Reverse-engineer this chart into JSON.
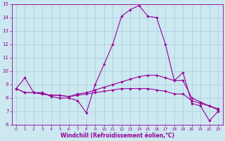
{
  "x": [
    0,
    1,
    2,
    3,
    4,
    5,
    6,
    7,
    8,
    9,
    10,
    11,
    12,
    13,
    14,
    15,
    16,
    17,
    18,
    19,
    20,
    21,
    22,
    23
  ],
  "line_main": [
    8.7,
    9.5,
    8.4,
    8.4,
    8.1,
    8.0,
    8.0,
    7.8,
    6.9,
    9.0,
    10.5,
    12.0,
    14.1,
    14.6,
    14.9,
    14.1,
    14.0,
    12.0,
    9.3,
    9.9,
    7.6,
    7.4,
    6.3,
    7.0
  ],
  "line_flat1": [
    8.7,
    8.4,
    8.4,
    8.3,
    8.2,
    8.2,
    8.1,
    8.3,
    8.4,
    8.6,
    8.8,
    9.0,
    9.2,
    9.4,
    9.6,
    9.7,
    9.7,
    9.5,
    9.3,
    9.3,
    8.0,
    7.7,
    7.4,
    7.2
  ],
  "line_flat2": [
    8.7,
    8.4,
    8.4,
    8.3,
    8.2,
    8.2,
    8.1,
    8.2,
    8.3,
    8.4,
    8.5,
    8.6,
    8.7,
    8.7,
    8.7,
    8.7,
    8.6,
    8.5,
    8.3,
    8.3,
    7.8,
    7.6,
    7.4,
    7.1
  ],
  "ylim": [
    6,
    15
  ],
  "xlim_min": -0.5,
  "xlim_max": 23.5,
  "yticks": [
    6,
    7,
    8,
    9,
    10,
    11,
    12,
    13,
    14,
    15
  ],
  "xticks": [
    0,
    1,
    2,
    3,
    4,
    5,
    6,
    7,
    8,
    9,
    10,
    11,
    12,
    13,
    14,
    15,
    16,
    17,
    18,
    19,
    20,
    21,
    22,
    23
  ],
  "xlabel": "Windchill (Refroidissement éolien,°C)",
  "line_color": "#990099",
  "bg_color": "#cce8f0",
  "grid_color": "#aaccdd",
  "marker": "D",
  "marker_size": 1.8,
  "line_width": 0.8,
  "tick_fontsize": 5,
  "xlabel_fontsize": 5.5
}
